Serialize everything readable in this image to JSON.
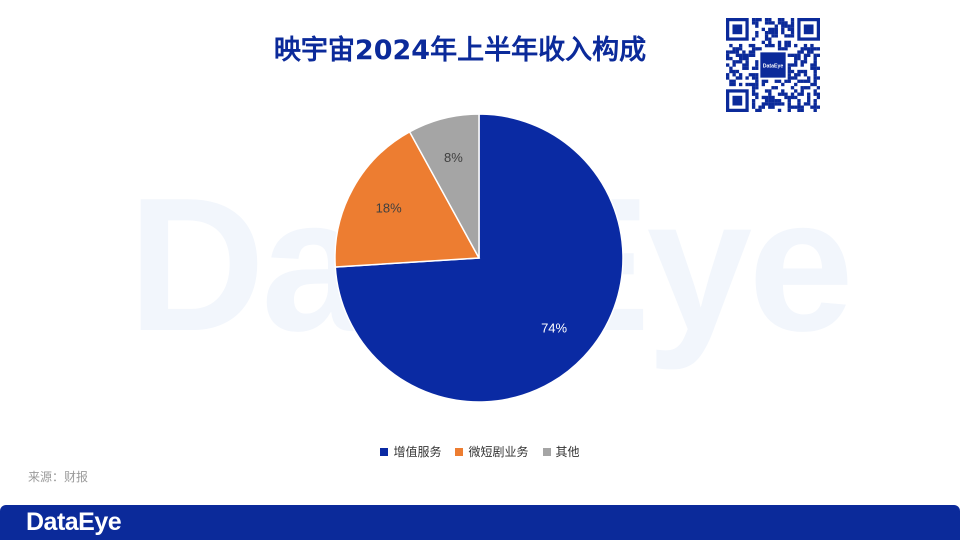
{
  "title": "映宇宙2024年上半年收入构成",
  "source": "来源：财报",
  "brand": {
    "name": "DataEye",
    "primary_color": "#0b2a9a"
  },
  "qr_label": "DataEye",
  "chart_data": {
    "type": "pie",
    "categories": [
      "增值服务",
      "微短剧业务",
      "其他"
    ],
    "values": [
      74,
      18,
      8
    ],
    "labels": [
      "74%",
      "18%",
      "8%"
    ],
    "colors": [
      "#0a2aa3",
      "#ed7d31",
      "#a5a5a5"
    ],
    "label_colors": [
      "#ffffff",
      "#404040",
      "#404040"
    ],
    "legend_position": "bottom",
    "start_angle": "12 o'clock",
    "direction": "clockwise"
  }
}
